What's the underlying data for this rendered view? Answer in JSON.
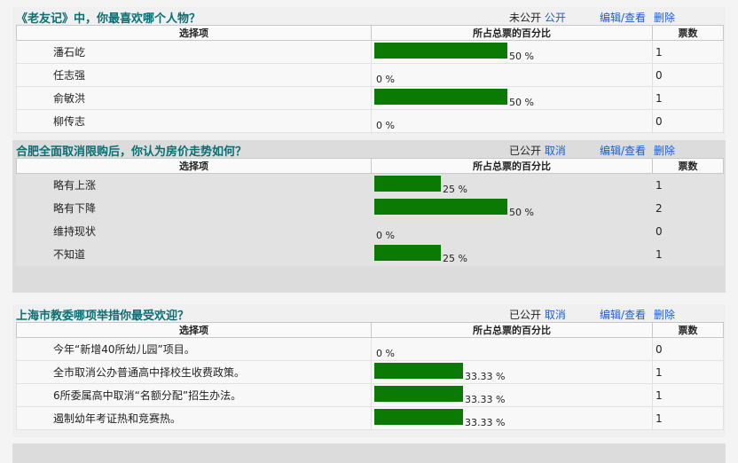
{
  "headers": {
    "option": "选择项",
    "percent": "所占总票的百分比",
    "votes": "票数"
  },
  "polls": [
    {
      "title": "《老友记》中，你最喜欢哪个人物？",
      "status": "未公开",
      "toggle": "公开",
      "edit": "编辑/查看",
      "delete": "删除",
      "rows": [
        {
          "option": "潘石屹",
          "percent_label": "50 %",
          "percent": 50,
          "votes": "1"
        },
        {
          "option": "任志强",
          "percent_label": "0 %",
          "percent": 0,
          "votes": "0"
        },
        {
          "option": "俞敏洪",
          "percent_label": "50 %",
          "percent": 50,
          "votes": "1"
        },
        {
          "option": "柳传志",
          "percent_label": "0 %",
          "percent": 0,
          "votes": "0"
        }
      ]
    },
    {
      "title": "合肥全面取消限购后，你认为房价走势如何？",
      "status": "已公开",
      "toggle": "取消",
      "edit": "编辑/查看",
      "delete": "删除",
      "rows": [
        {
          "option": "略有上涨",
          "percent_label": "25 %",
          "percent": 25,
          "votes": "1"
        },
        {
          "option": "略有下降",
          "percent_label": "50 %",
          "percent": 50,
          "votes": "2"
        },
        {
          "option": "维持现状",
          "percent_label": "0 %",
          "percent": 0,
          "votes": "0"
        },
        {
          "option": "不知道",
          "percent_label": "25 %",
          "percent": 25,
          "votes": "1"
        }
      ]
    },
    {
      "title": "上海市教委哪项举措你最受欢迎？",
      "status": "已公开",
      "toggle": "取消",
      "edit": "编辑/查看",
      "delete": "删除",
      "rows": [
        {
          "option": "今年“新增40所幼儿园”项目。",
          "percent_label": "0 %",
          "percent": 0,
          "votes": "0"
        },
        {
          "option": "全市取消公办普通高中择校生收费政策。",
          "percent_label": "33.33 %",
          "percent": 33.33,
          "votes": "1"
        },
        {
          "option": "6所委属高中取消“名额分配”招生办法。",
          "percent_label": "33.33 %",
          "percent": 33.33,
          "votes": "1"
        },
        {
          "option": "遏制幼年考证热和竞赛热。",
          "percent_label": "33.33 %",
          "percent": 33.33,
          "votes": "1"
        }
      ]
    }
  ]
}
